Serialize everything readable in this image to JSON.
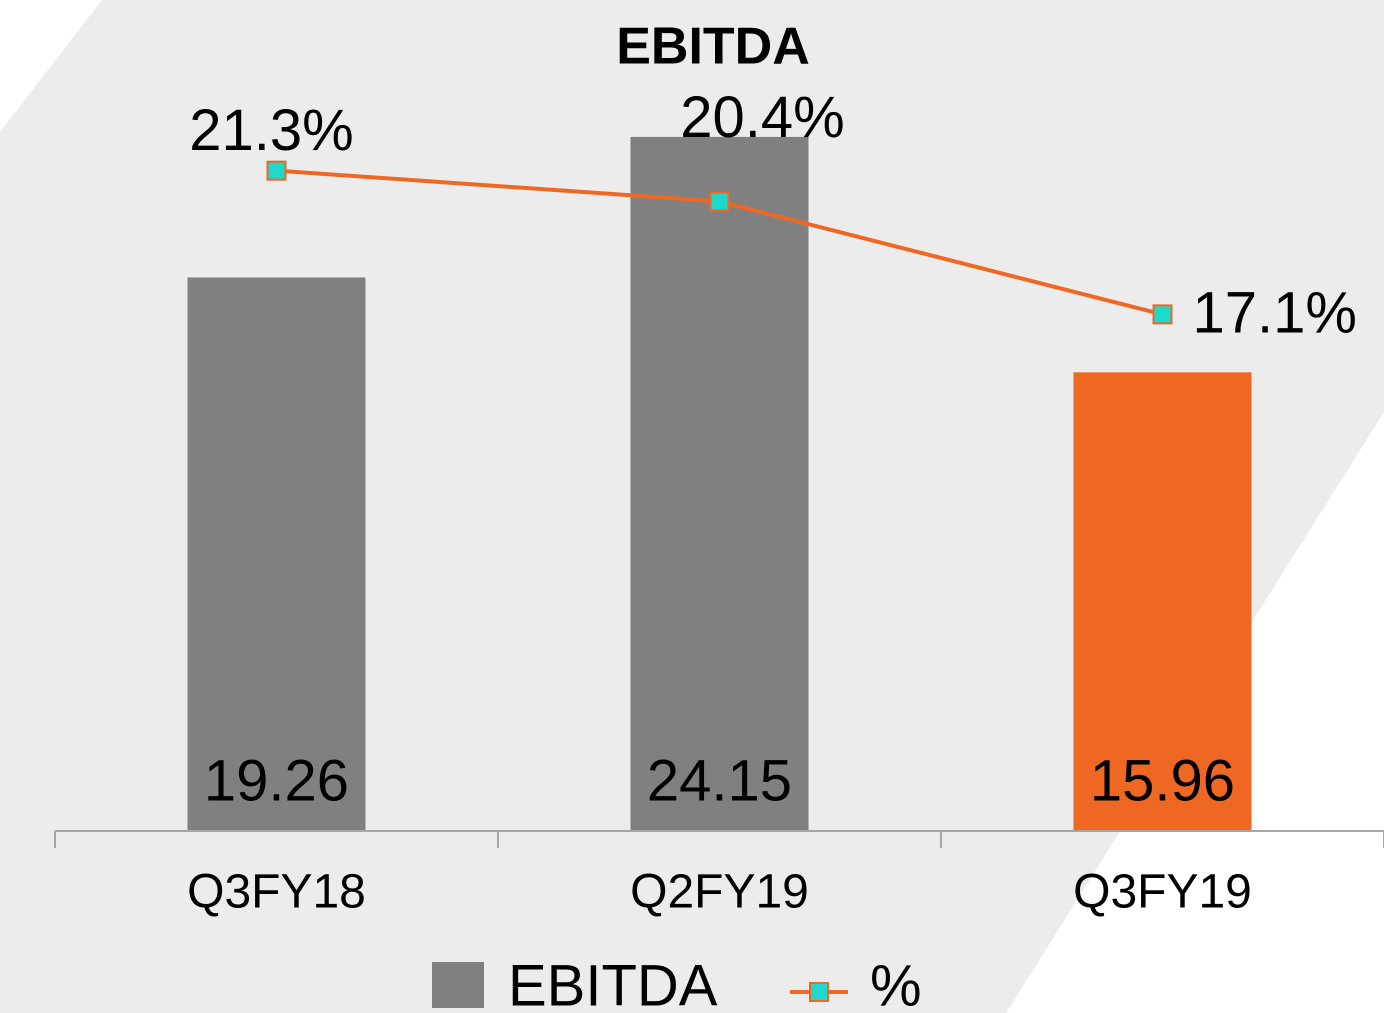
{
  "chart_data": {
    "type": "bar_line",
    "title": "EBITDA",
    "categories": [
      "Q3FY18",
      "Q2FY19",
      "Q3FY19"
    ],
    "ylim": [
      0,
      25
    ],
    "y2lim": [
      2,
      23
    ],
    "series": [
      {
        "name": "EBITDA",
        "type": "bar",
        "color": "#808080",
        "colors": [
          "#808080",
          "#808080",
          "#ee6723"
        ],
        "values": [
          19.26,
          24.15,
          15.96
        ]
      },
      {
        "name": "%",
        "type": "line",
        "axis": "y2",
        "color": "#ee6723",
        "marker_color": "#1fd8cc",
        "values": [
          21.3,
          20.4,
          17.1
        ],
        "value_labels": [
          "21.3%",
          "20.4%",
          "17.1%"
        ]
      }
    ]
  }
}
